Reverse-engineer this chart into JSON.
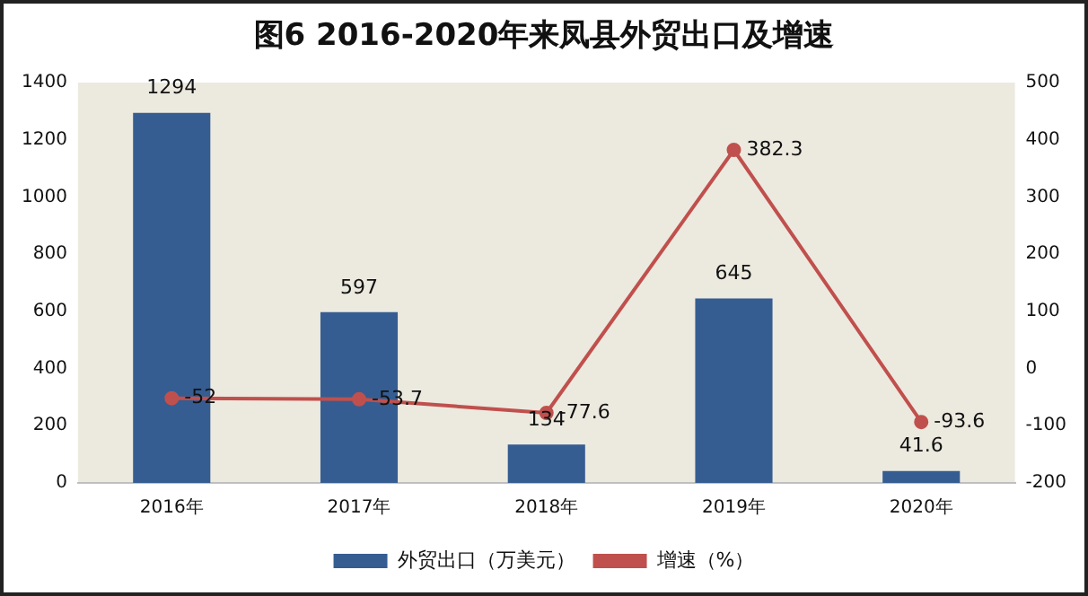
{
  "chart_data": {
    "type": "bar",
    "title": "图6  2016-2020年来凤县外贸出口及增速",
    "categories": [
      "2016年",
      "2017年",
      "2018年",
      "2019年",
      "2020年"
    ],
    "series": [
      {
        "name": "外贸出口（万美元）",
        "color": "#355d91",
        "values": [
          1294,
          597,
          134,
          645,
          41.6
        ]
      },
      {
        "name": "增速（%）",
        "type": "line",
        "axis": "y2",
        "color": "#c0504d",
        "marker": "circle",
        "values": [
          -52,
          -53.7,
          -77.6,
          382.3,
          -93.6
        ]
      }
    ],
    "ylim": [
      0,
      1400
    ],
    "yticks": [
      0,
      200,
      400,
      600,
      800,
      1000,
      1200,
      1400
    ],
    "y2lim": [
      -200,
      500
    ],
    "y2ticks": [
      -200,
      -100,
      0,
      100,
      200,
      300,
      400,
      500
    ],
    "grid": false,
    "legend": "bottom",
    "data_labels": true
  }
}
